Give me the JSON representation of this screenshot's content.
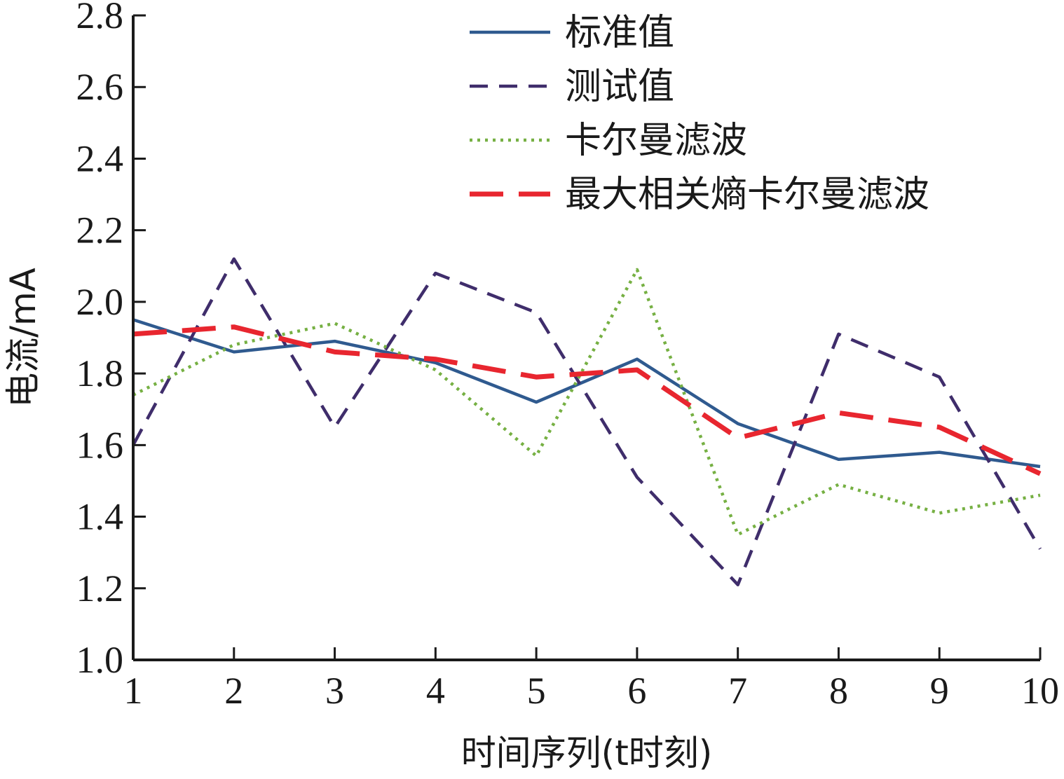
{
  "chart_data": {
    "type": "line",
    "xlabel": "时间序列(t时刻)",
    "ylabel": "电流/mA",
    "x": [
      1,
      2,
      3,
      4,
      5,
      6,
      7,
      8,
      9,
      10
    ],
    "xlim": [
      1,
      10
    ],
    "ylim": [
      1.0,
      2.8
    ],
    "xticks": [
      "1",
      "2",
      "3",
      "4",
      "5",
      "6",
      "7",
      "8",
      "9",
      "10"
    ],
    "yticks": [
      "1.0",
      "1.2",
      "1.4",
      "1.6",
      "1.8",
      "2.0",
      "2.2",
      "2.4",
      "2.6",
      "2.8"
    ],
    "grid": false,
    "legend_position": "top-right",
    "series": [
      {
        "name": "标准值",
        "color": "#2f5a8f",
        "style": "solid",
        "values": [
          1.95,
          1.86,
          1.89,
          1.83,
          1.72,
          1.84,
          1.66,
          1.56,
          1.58,
          1.54
        ]
      },
      {
        "name": "测试值",
        "color": "#3f2d6b",
        "style": "dashed",
        "values": [
          1.6,
          2.12,
          1.65,
          2.08,
          1.97,
          1.51,
          1.21,
          1.91,
          1.79,
          1.31
        ]
      },
      {
        "name": "卡尔曼滤波",
        "color": "#76b043",
        "style": "dotted",
        "values": [
          1.74,
          1.88,
          1.94,
          1.81,
          1.57,
          2.09,
          1.35,
          1.49,
          1.41,
          1.46
        ]
      },
      {
        "name": "最大相关熵卡尔曼滤波",
        "color": "#e8262f",
        "style": "longdash",
        "values": [
          1.91,
          1.93,
          1.86,
          1.84,
          1.79,
          1.81,
          1.62,
          1.69,
          1.65,
          1.52
        ]
      }
    ]
  }
}
